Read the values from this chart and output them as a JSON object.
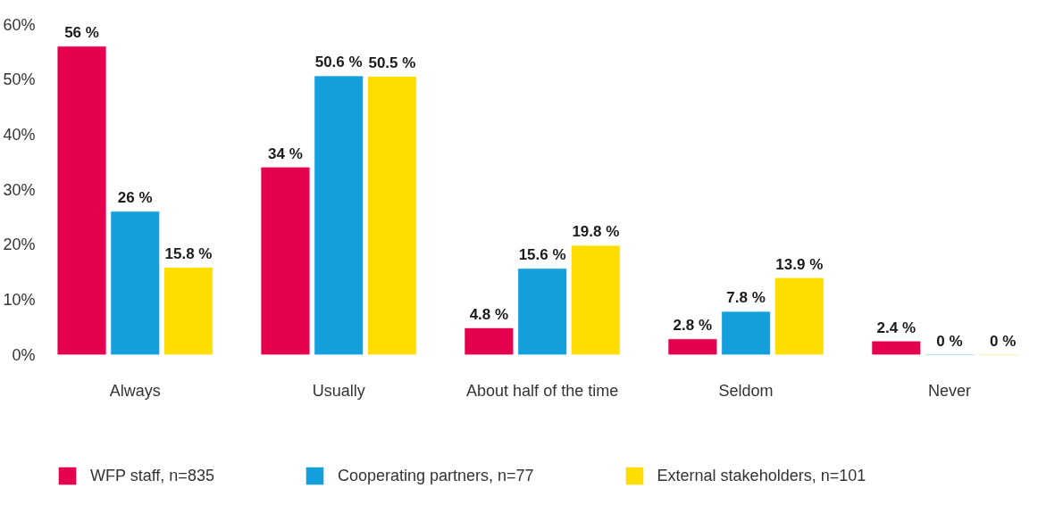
{
  "chart_data": {
    "type": "bar",
    "categories": [
      "Always",
      "Usually",
      "About half of the time",
      "Seldom",
      "Never"
    ],
    "series": [
      {
        "name": "WFP staff, n=835",
        "color": "#e4004f",
        "values": [
          56,
          34,
          4.8,
          2.8,
          2.4
        ],
        "value_labels": [
          "56 %",
          "34 %",
          "4.8 %",
          "2.8 %",
          "2.4 %"
        ]
      },
      {
        "name": "Cooperating partners, n=77",
        "color": "#14a0dd",
        "values": [
          26,
          50.6,
          15.6,
          7.8,
          0
        ],
        "value_labels": [
          "26 %",
          "50.6 %",
          "15.6 %",
          "7.8 %",
          "0 %"
        ]
      },
      {
        "name": "External stakeholders, n=101",
        "color": "#fedd00",
        "values": [
          15.8,
          50.5,
          19.8,
          13.9,
          0
        ],
        "value_labels": [
          "15.8 %",
          "50.5 %",
          "19.8 %",
          "13.9 %",
          "0 %"
        ]
      }
    ],
    "ylim": [
      0,
      60
    ],
    "yticks": [
      {
        "value": 0,
        "label": "0%"
      },
      {
        "value": 10,
        "label": "10%"
      },
      {
        "value": 20,
        "label": "20%"
      },
      {
        "value": 30,
        "label": "30%"
      },
      {
        "value": 40,
        "label": "40%"
      },
      {
        "value": 50,
        "label": "50%"
      },
      {
        "value": 60,
        "label": "60%"
      }
    ],
    "legend": "bottom"
  }
}
